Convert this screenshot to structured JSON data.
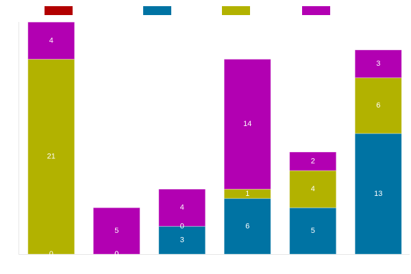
{
  "chart_data": {
    "type": "bar",
    "stacked": true,
    "title": "",
    "xlabel": "",
    "ylabel": "",
    "ylim": [
      0,
      25
    ],
    "categories": [
      "",
      "",
      "",
      "",
      "",
      ""
    ],
    "legend_position": "top",
    "series": [
      {
        "color": "#b20000",
        "values": [
          0,
          0,
          0,
          0,
          0,
          0
        ]
      },
      {
        "color": "#0073a3",
        "values": [
          0,
          0,
          3,
          6,
          5,
          13
        ]
      },
      {
        "color": "#b2b200",
        "values": [
          21,
          0,
          0,
          1,
          4,
          6
        ]
      },
      {
        "color": "#b200b2",
        "values": [
          4,
          5,
          4,
          14,
          2,
          3
        ]
      }
    ],
    "overflow_top": true
  }
}
